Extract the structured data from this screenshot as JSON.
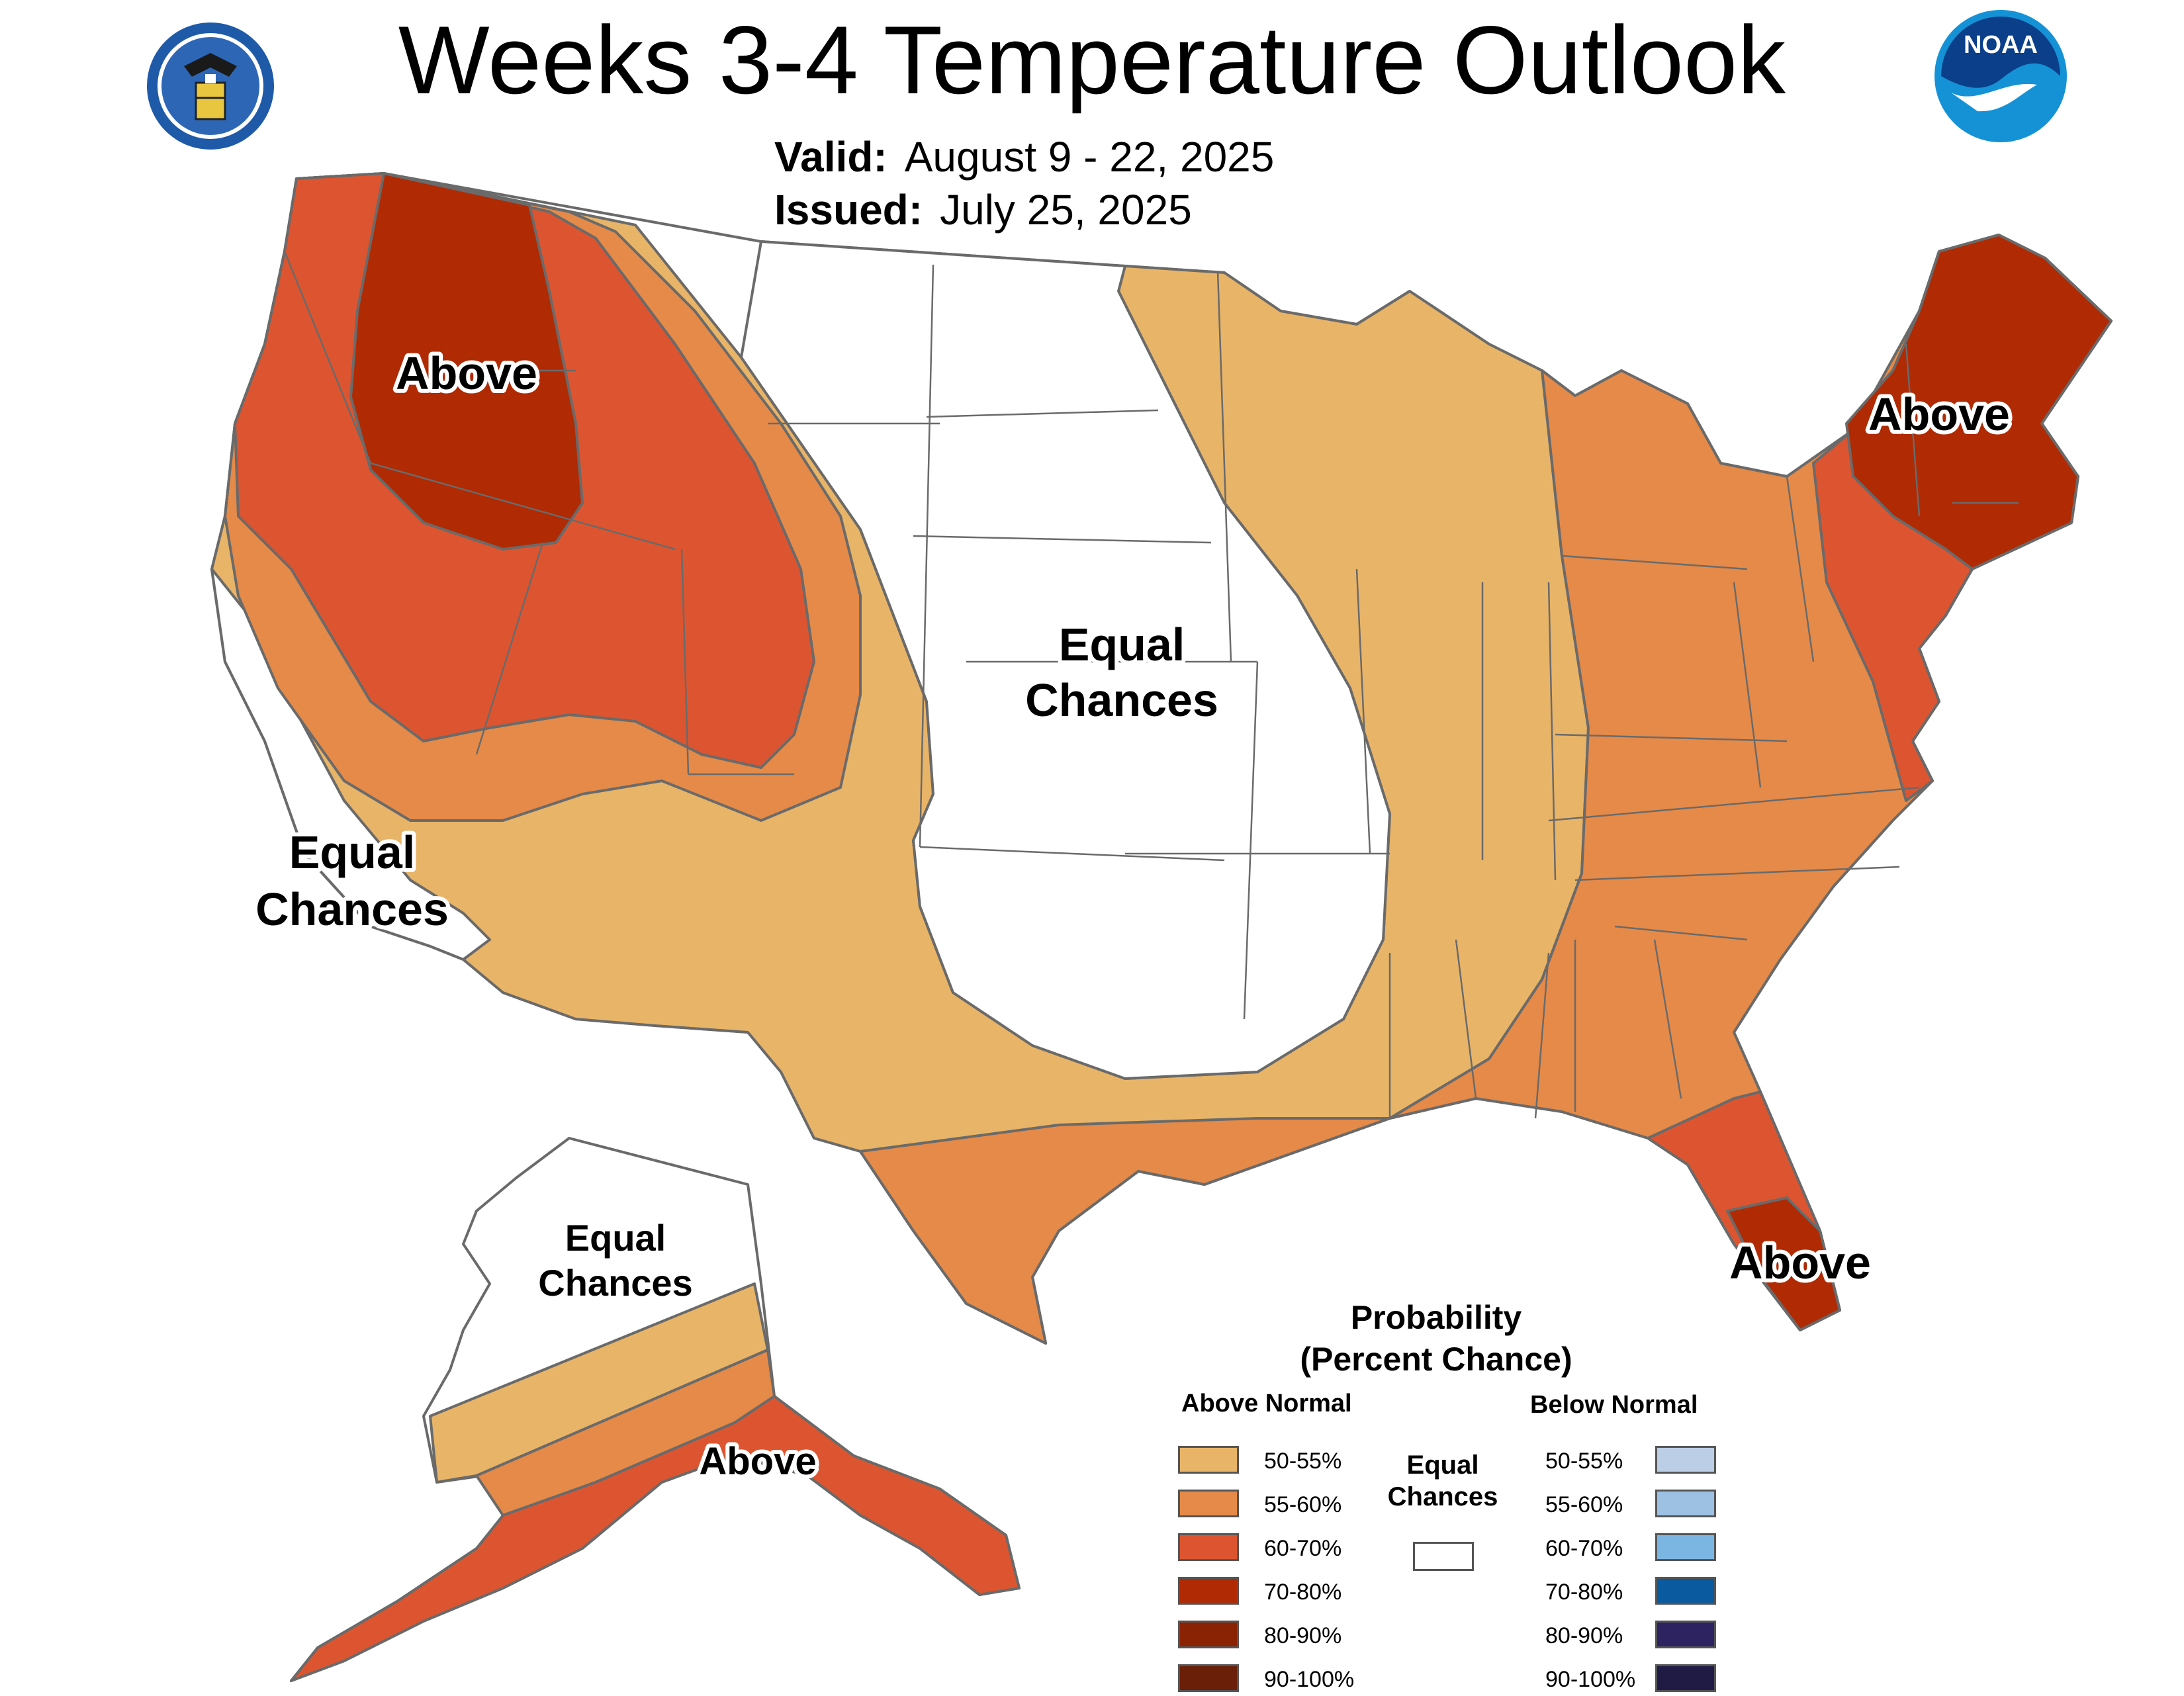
{
  "title": "Weeks 3-4 Temperature Outlook",
  "valid": {
    "label": "Valid:",
    "value": "August 9 - 22, 2025"
  },
  "issued": {
    "label": "Issued:",
    "value": "July 25, 2025"
  },
  "logos": {
    "left": "department-of-commerce-seal",
    "right": "noaa-logo"
  },
  "map_labels": {
    "northwest": "Above",
    "northeast": "Above",
    "florida": "Above",
    "alaska_south": "Above",
    "central_l1": "Equal",
    "central_l2": "Chances",
    "california_l1": "Equal",
    "california_l2": "Chances",
    "alaska_north_l1": "Equal",
    "alaska_north_l2": "Chances"
  },
  "legend": {
    "title_l1": "Probability",
    "title_l2": "(Percent Chance)",
    "above_header": "Above Normal",
    "below_header": "Below Normal",
    "equal_l1": "Equal",
    "equal_l2": "Chances",
    "above": [
      {
        "label": "50-55%",
        "color": "#e8b468"
      },
      {
        "label": "55-60%",
        "color": "#e58a48"
      },
      {
        "label": "60-70%",
        "color": "#dc5530"
      },
      {
        "label": "70-80%",
        "color": "#b02a04"
      },
      {
        "label": "80-90%",
        "color": "#8a2204"
      },
      {
        "label": "90-100%",
        "color": "#6a1f08"
      }
    ],
    "below": [
      {
        "label": "50-55%",
        "color": "#bccde6"
      },
      {
        "label": "55-60%",
        "color": "#9dc1e2"
      },
      {
        "label": "60-70%",
        "color": "#7bb6e3"
      },
      {
        "label": "70-80%",
        "color": "#0a5aa0"
      },
      {
        "label": "80-90%",
        "color": "#2c2360"
      },
      {
        "label": "90-100%",
        "color": "#1f1b45"
      }
    ]
  }
}
